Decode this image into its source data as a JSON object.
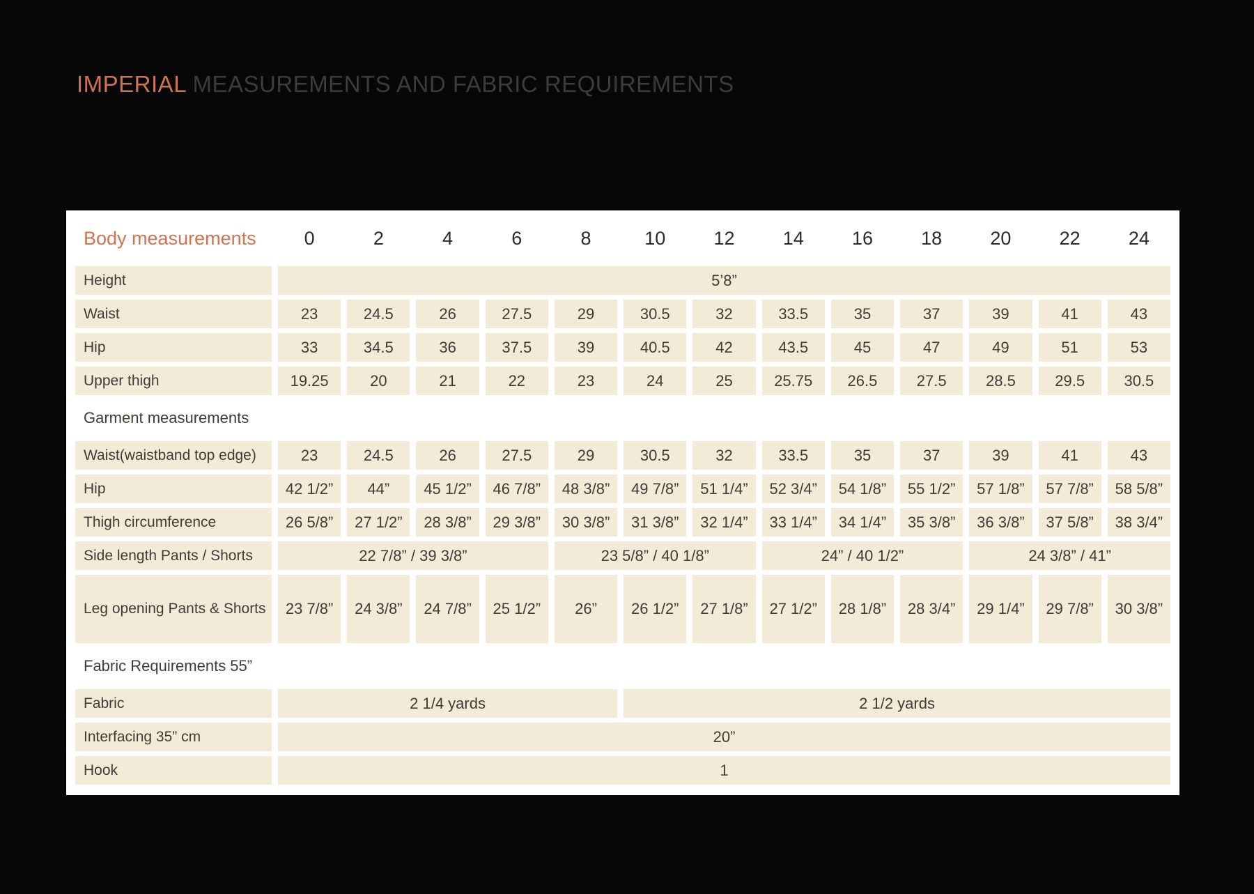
{
  "title": {
    "accent": "IMPERIAL",
    "rest": " MEASUREMENTS AND FABRIC REQUIREMENTS"
  },
  "colors": {
    "accent_orange": "#cf7350",
    "title_gray": "#3c3c3c",
    "cell_cream": "#f3ead7",
    "sheet_white": "#ffffff",
    "page_black": "#070707",
    "cell_text": "#3e3c36"
  },
  "table": {
    "header": {
      "label": "Body measurements",
      "sizes": [
        "0",
        "2",
        "4",
        "6",
        "8",
        "10",
        "12",
        "14",
        "16",
        "18",
        "20",
        "22",
        "24"
      ]
    },
    "rows": [
      {
        "type": "data",
        "label": "Height",
        "cells": [
          {
            "span": 13,
            "text": "5’8”"
          }
        ]
      },
      {
        "type": "data",
        "label": "Waist",
        "cells": [
          {
            "span": 1,
            "text": "23"
          },
          {
            "span": 1,
            "text": "24.5"
          },
          {
            "span": 1,
            "text": "26"
          },
          {
            "span": 1,
            "text": "27.5"
          },
          {
            "span": 1,
            "text": "29"
          },
          {
            "span": 1,
            "text": "30.5"
          },
          {
            "span": 1,
            "text": "32"
          },
          {
            "span": 1,
            "text": "33.5"
          },
          {
            "span": 1,
            "text": "35"
          },
          {
            "span": 1,
            "text": "37"
          },
          {
            "span": 1,
            "text": "39"
          },
          {
            "span": 1,
            "text": "41"
          },
          {
            "span": 1,
            "text": "43"
          }
        ]
      },
      {
        "type": "data",
        "label": "Hip",
        "cells": [
          {
            "span": 1,
            "text": "33"
          },
          {
            "span": 1,
            "text": "34.5"
          },
          {
            "span": 1,
            "text": "36"
          },
          {
            "span": 1,
            "text": "37.5"
          },
          {
            "span": 1,
            "text": "39"
          },
          {
            "span": 1,
            "text": "40.5"
          },
          {
            "span": 1,
            "text": "42"
          },
          {
            "span": 1,
            "text": "43.5"
          },
          {
            "span": 1,
            "text": "45"
          },
          {
            "span": 1,
            "text": "47"
          },
          {
            "span": 1,
            "text": "49"
          },
          {
            "span": 1,
            "text": "51"
          },
          {
            "span": 1,
            "text": "53"
          }
        ]
      },
      {
        "type": "data",
        "label": "Upper thigh",
        "cells": [
          {
            "span": 1,
            "text": "19.25"
          },
          {
            "span": 1,
            "text": "20"
          },
          {
            "span": 1,
            "text": "21"
          },
          {
            "span": 1,
            "text": "22"
          },
          {
            "span": 1,
            "text": "23"
          },
          {
            "span": 1,
            "text": "24"
          },
          {
            "span": 1,
            "text": "25"
          },
          {
            "span": 1,
            "text": "25.75"
          },
          {
            "span": 1,
            "text": "26.5"
          },
          {
            "span": 1,
            "text": "27.5"
          },
          {
            "span": 1,
            "text": "28.5"
          },
          {
            "span": 1,
            "text": "29.5"
          },
          {
            "span": 1,
            "text": "30.5"
          }
        ]
      },
      {
        "type": "section",
        "label": "Garment measurements"
      },
      {
        "type": "data",
        "label": "Waist(waistband top edge)",
        "cells": [
          {
            "span": 1,
            "text": "23"
          },
          {
            "span": 1,
            "text": "24.5"
          },
          {
            "span": 1,
            "text": "26"
          },
          {
            "span": 1,
            "text": "27.5"
          },
          {
            "span": 1,
            "text": "29"
          },
          {
            "span": 1,
            "text": "30.5"
          },
          {
            "span": 1,
            "text": "32"
          },
          {
            "span": 1,
            "text": "33.5"
          },
          {
            "span": 1,
            "text": "35"
          },
          {
            "span": 1,
            "text": "37"
          },
          {
            "span": 1,
            "text": "39"
          },
          {
            "span": 1,
            "text": "41"
          },
          {
            "span": 1,
            "text": "43"
          }
        ]
      },
      {
        "type": "data",
        "label": "Hip",
        "cells": [
          {
            "span": 1,
            "text": "42 1/2”"
          },
          {
            "span": 1,
            "text": "44”"
          },
          {
            "span": 1,
            "text": "45 1/2”"
          },
          {
            "span": 1,
            "text": "46 7/8”"
          },
          {
            "span": 1,
            "text": "48 3/8”"
          },
          {
            "span": 1,
            "text": "49 7/8”"
          },
          {
            "span": 1,
            "text": "51 1/4”"
          },
          {
            "span": 1,
            "text": "52 3/4”"
          },
          {
            "span": 1,
            "text": "54 1/8”"
          },
          {
            "span": 1,
            "text": "55 1/2”"
          },
          {
            "span": 1,
            "text": "57 1/8”"
          },
          {
            "span": 1,
            "text": "57 7/8”"
          },
          {
            "span": 1,
            "text": "58 5/8”"
          }
        ]
      },
      {
        "type": "data",
        "label": "Thigh circumference",
        "cells": [
          {
            "span": 1,
            "text": "26 5/8”"
          },
          {
            "span": 1,
            "text": "27 1/2”"
          },
          {
            "span": 1,
            "text": "28 3/8”"
          },
          {
            "span": 1,
            "text": "29 3/8”"
          },
          {
            "span": 1,
            "text": "30 3/8”"
          },
          {
            "span": 1,
            "text": "31 3/8”"
          },
          {
            "span": 1,
            "text": "32 1/4”"
          },
          {
            "span": 1,
            "text": "33 1/4”"
          },
          {
            "span": 1,
            "text": "34 1/4”"
          },
          {
            "span": 1,
            "text": "35 3/8”"
          },
          {
            "span": 1,
            "text": "36 3/8”"
          },
          {
            "span": 1,
            "text": "37 5/8”"
          },
          {
            "span": 1,
            "text": "38 3/4”"
          }
        ]
      },
      {
        "type": "data",
        "label": "Side length Pants / Shorts",
        "cells": [
          {
            "span": 4,
            "text": "22 7/8” / 39 3/8”"
          },
          {
            "span": 3,
            "text": "23 5/8” / 40 1/8”"
          },
          {
            "span": 3,
            "text": "24” / 40 1/2”"
          },
          {
            "span": 3,
            "text": "24 3/8” / 41”"
          }
        ]
      },
      {
        "type": "data",
        "label": "Leg opening Pants  & Shorts",
        "tall": true,
        "cells": [
          {
            "span": 1,
            "text": "23 7/8”"
          },
          {
            "span": 1,
            "text": "24 3/8”"
          },
          {
            "span": 1,
            "text": "24 7/8”"
          },
          {
            "span": 1,
            "text": "25 1/2”"
          },
          {
            "span": 1,
            "text": "26”"
          },
          {
            "span": 1,
            "text": "26 1/2”"
          },
          {
            "span": 1,
            "text": "27 1/8”"
          },
          {
            "span": 1,
            "text": "27 1/2”"
          },
          {
            "span": 1,
            "text": "28 1/8”"
          },
          {
            "span": 1,
            "text": "28 3/4”"
          },
          {
            "span": 1,
            "text": "29 1/4”"
          },
          {
            "span": 1,
            "text": "29 7/8”"
          },
          {
            "span": 1,
            "text": "30 3/8”"
          }
        ]
      },
      {
        "type": "section",
        "label": "Fabric Requirements 55”"
      },
      {
        "type": "data",
        "label": "Fabric",
        "cells": [
          {
            "span": 5,
            "text": "2 1/4 yards"
          },
          {
            "span": 8,
            "text": "2 1/2 yards"
          }
        ]
      },
      {
        "type": "data",
        "label": "Interfacing 35” cm",
        "cells": [
          {
            "span": 13,
            "text": "20”"
          }
        ]
      },
      {
        "type": "data",
        "label": "Hook",
        "cells": [
          {
            "span": 13,
            "text": "1"
          }
        ]
      }
    ]
  }
}
